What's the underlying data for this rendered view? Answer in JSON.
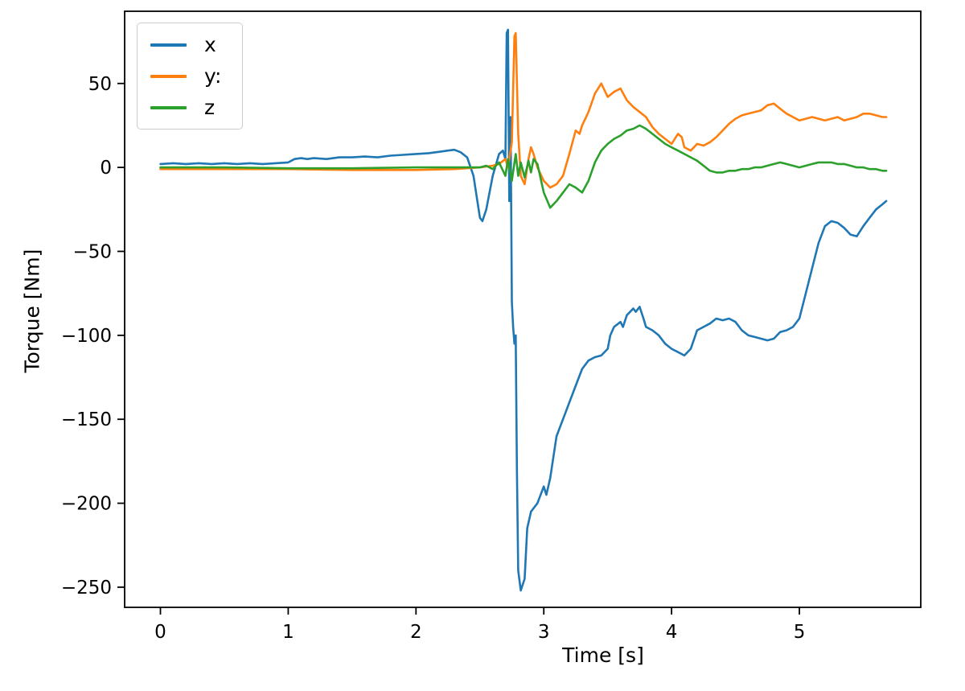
{
  "chart_data": {
    "type": "line",
    "title": "",
    "xlabel": "Time [s]",
    "ylabel": "Torque [Nm]",
    "xlim": [
      -0.28,
      5.95
    ],
    "ylim": [
      -262,
      93
    ],
    "x_ticks": [
      0,
      1,
      2,
      3,
      4,
      5
    ],
    "y_ticks": [
      50,
      0,
      -50,
      -100,
      -150,
      -200,
      -250
    ],
    "grid": false,
    "legend_position": "upper-left",
    "series": [
      {
        "name": "x",
        "color": "#1f77b4",
        "points": [
          [
            0,
            2
          ],
          [
            0.1,
            2.5
          ],
          [
            0.2,
            2
          ],
          [
            0.3,
            2.5
          ],
          [
            0.4,
            2
          ],
          [
            0.5,
            2.5
          ],
          [
            0.6,
            2
          ],
          [
            0.7,
            2.5
          ],
          [
            0.8,
            2
          ],
          [
            0.9,
            2.5
          ],
          [
            1.0,
            3
          ],
          [
            1.05,
            5
          ],
          [
            1.1,
            5.5
          ],
          [
            1.15,
            5
          ],
          [
            1.2,
            5.5
          ],
          [
            1.3,
            5
          ],
          [
            1.4,
            6
          ],
          [
            1.5,
            6
          ],
          [
            1.6,
            6.5
          ],
          [
            1.7,
            6
          ],
          [
            1.8,
            7
          ],
          [
            1.9,
            7.5
          ],
          [
            2.0,
            8
          ],
          [
            2.1,
            8.5
          ],
          [
            2.2,
            9.5
          ],
          [
            2.25,
            10
          ],
          [
            2.3,
            10.5
          ],
          [
            2.35,
            9
          ],
          [
            2.4,
            6
          ],
          [
            2.45,
            -5
          ],
          [
            2.5,
            -30
          ],
          [
            2.52,
            -32
          ],
          [
            2.55,
            -25
          ],
          [
            2.6,
            -5
          ],
          [
            2.65,
            8
          ],
          [
            2.68,
            10
          ],
          [
            2.7,
            5
          ],
          [
            2.71,
            80
          ],
          [
            2.72,
            82
          ],
          [
            2.73,
            -20
          ],
          [
            2.74,
            30
          ],
          [
            2.75,
            -80
          ],
          [
            2.76,
            -95
          ],
          [
            2.77,
            -105
          ],
          [
            2.78,
            -100
          ],
          [
            2.79,
            -180
          ],
          [
            2.8,
            -240
          ],
          [
            2.82,
            -252
          ],
          [
            2.85,
            -245
          ],
          [
            2.87,
            -215
          ],
          [
            2.9,
            -205
          ],
          [
            2.95,
            -200
          ],
          [
            3.0,
            -190
          ],
          [
            3.02,
            -195
          ],
          [
            3.05,
            -185
          ],
          [
            3.1,
            -160
          ],
          [
            3.15,
            -150
          ],
          [
            3.2,
            -140
          ],
          [
            3.25,
            -130
          ],
          [
            3.3,
            -120
          ],
          [
            3.35,
            -115
          ],
          [
            3.4,
            -113
          ],
          [
            3.45,
            -112
          ],
          [
            3.5,
            -108
          ],
          [
            3.52,
            -100
          ],
          [
            3.55,
            -95
          ],
          [
            3.6,
            -92
          ],
          [
            3.62,
            -95
          ],
          [
            3.65,
            -88
          ],
          [
            3.7,
            -84
          ],
          [
            3.72,
            -86
          ],
          [
            3.75,
            -83
          ],
          [
            3.78,
            -90
          ],
          [
            3.8,
            -95
          ],
          [
            3.85,
            -97
          ],
          [
            3.9,
            -100
          ],
          [
            3.95,
            -105
          ],
          [
            4.0,
            -108
          ],
          [
            4.05,
            -110
          ],
          [
            4.1,
            -112
          ],
          [
            4.15,
            -108
          ],
          [
            4.2,
            -97
          ],
          [
            4.25,
            -95
          ],
          [
            4.3,
            -93
          ],
          [
            4.35,
            -90
          ],
          [
            4.4,
            -91
          ],
          [
            4.45,
            -90
          ],
          [
            4.5,
            -92
          ],
          [
            4.55,
            -97
          ],
          [
            4.6,
            -100
          ],
          [
            4.65,
            -101
          ],
          [
            4.7,
            -102
          ],
          [
            4.75,
            -103
          ],
          [
            4.8,
            -102
          ],
          [
            4.85,
            -98
          ],
          [
            4.9,
            -97
          ],
          [
            4.95,
            -95
          ],
          [
            5.0,
            -90
          ],
          [
            5.05,
            -75
          ],
          [
            5.1,
            -60
          ],
          [
            5.15,
            -45
          ],
          [
            5.2,
            -35
          ],
          [
            5.25,
            -32
          ],
          [
            5.3,
            -33
          ],
          [
            5.35,
            -36
          ],
          [
            5.4,
            -40
          ],
          [
            5.45,
            -41
          ],
          [
            5.5,
            -35
          ],
          [
            5.55,
            -30
          ],
          [
            5.6,
            -25
          ],
          [
            5.65,
            -22
          ],
          [
            5.68,
            -20
          ]
        ]
      },
      {
        "name": "y:",
        "color": "#ff7f0e",
        "points": [
          [
            0,
            -1
          ],
          [
            0.5,
            -1
          ],
          [
            1.0,
            -1
          ],
          [
            1.5,
            -1.5
          ],
          [
            2.0,
            -1.5
          ],
          [
            2.3,
            -1
          ],
          [
            2.5,
            0
          ],
          [
            2.6,
            1
          ],
          [
            2.65,
            2
          ],
          [
            2.7,
            5
          ],
          [
            2.72,
            0
          ],
          [
            2.75,
            15
          ],
          [
            2.77,
            78
          ],
          [
            2.78,
            80
          ],
          [
            2.8,
            20
          ],
          [
            2.82,
            -5
          ],
          [
            2.85,
            -10
          ],
          [
            2.88,
            5
          ],
          [
            2.9,
            12
          ],
          [
            2.92,
            8
          ],
          [
            2.95,
            0
          ],
          [
            3.0,
            -8
          ],
          [
            3.05,
            -12
          ],
          [
            3.1,
            -10
          ],
          [
            3.15,
            -5
          ],
          [
            3.2,
            8
          ],
          [
            3.25,
            22
          ],
          [
            3.28,
            20
          ],
          [
            3.3,
            25
          ],
          [
            3.35,
            33
          ],
          [
            3.4,
            44
          ],
          [
            3.45,
            50
          ],
          [
            3.5,
            42
          ],
          [
            3.55,
            45
          ],
          [
            3.6,
            47
          ],
          [
            3.65,
            40
          ],
          [
            3.7,
            36
          ],
          [
            3.75,
            33
          ],
          [
            3.8,
            30
          ],
          [
            3.85,
            24
          ],
          [
            3.9,
            20
          ],
          [
            3.95,
            17
          ],
          [
            4.0,
            14
          ],
          [
            4.05,
            20
          ],
          [
            4.08,
            18
          ],
          [
            4.1,
            12
          ],
          [
            4.15,
            10
          ],
          [
            4.2,
            14
          ],
          [
            4.25,
            13
          ],
          [
            4.3,
            15
          ],
          [
            4.35,
            18
          ],
          [
            4.4,
            22
          ],
          [
            4.45,
            26
          ],
          [
            4.5,
            29
          ],
          [
            4.55,
            31
          ],
          [
            4.6,
            32
          ],
          [
            4.65,
            33
          ],
          [
            4.7,
            34
          ],
          [
            4.75,
            37
          ],
          [
            4.8,
            38
          ],
          [
            4.85,
            35
          ],
          [
            4.9,
            32
          ],
          [
            4.95,
            30
          ],
          [
            5.0,
            28
          ],
          [
            5.05,
            29
          ],
          [
            5.1,
            30
          ],
          [
            5.15,
            29
          ],
          [
            5.2,
            28
          ],
          [
            5.25,
            29
          ],
          [
            5.3,
            30
          ],
          [
            5.35,
            28
          ],
          [
            5.4,
            29
          ],
          [
            5.45,
            30
          ],
          [
            5.5,
            32
          ],
          [
            5.55,
            32
          ],
          [
            5.6,
            31
          ],
          [
            5.65,
            30
          ],
          [
            5.68,
            30
          ]
        ]
      },
      {
        "name": "z",
        "color": "#2ca02c",
        "points": [
          [
            0,
            0
          ],
          [
            0.5,
            0
          ],
          [
            1.0,
            -0.5
          ],
          [
            1.5,
            -0.5
          ],
          [
            2.0,
            0
          ],
          [
            2.3,
            0
          ],
          [
            2.5,
            0
          ],
          [
            2.55,
            1
          ],
          [
            2.6,
            -1
          ],
          [
            2.65,
            3
          ],
          [
            2.7,
            -5
          ],
          [
            2.72,
            5
          ],
          [
            2.75,
            -8
          ],
          [
            2.78,
            8
          ],
          [
            2.8,
            -5
          ],
          [
            2.82,
            3
          ],
          [
            2.85,
            -6
          ],
          [
            2.88,
            4
          ],
          [
            2.9,
            -3
          ],
          [
            2.92,
            5
          ],
          [
            2.95,
            2
          ],
          [
            3.0,
            -15
          ],
          [
            3.05,
            -24
          ],
          [
            3.1,
            -20
          ],
          [
            3.15,
            -15
          ],
          [
            3.2,
            -10
          ],
          [
            3.25,
            -12
          ],
          [
            3.3,
            -15
          ],
          [
            3.35,
            -8
          ],
          [
            3.4,
            3
          ],
          [
            3.45,
            10
          ],
          [
            3.5,
            14
          ],
          [
            3.55,
            17
          ],
          [
            3.6,
            19
          ],
          [
            3.65,
            22
          ],
          [
            3.7,
            23
          ],
          [
            3.75,
            25
          ],
          [
            3.8,
            23
          ],
          [
            3.85,
            20
          ],
          [
            3.9,
            17
          ],
          [
            3.95,
            14
          ],
          [
            4.0,
            12
          ],
          [
            4.05,
            10
          ],
          [
            4.1,
            8
          ],
          [
            4.15,
            6
          ],
          [
            4.2,
            4
          ],
          [
            4.25,
            1
          ],
          [
            4.3,
            -2
          ],
          [
            4.35,
            -3
          ],
          [
            4.4,
            -3
          ],
          [
            4.45,
            -2
          ],
          [
            4.5,
            -2
          ],
          [
            4.55,
            -1
          ],
          [
            4.6,
            -1
          ],
          [
            4.65,
            0
          ],
          [
            4.7,
            0
          ],
          [
            4.75,
            1
          ],
          [
            4.8,
            2
          ],
          [
            4.85,
            3
          ],
          [
            4.9,
            2
          ],
          [
            4.95,
            1
          ],
          [
            5.0,
            0
          ],
          [
            5.05,
            1
          ],
          [
            5.1,
            2
          ],
          [
            5.15,
            3
          ],
          [
            5.2,
            3
          ],
          [
            5.25,
            3
          ],
          [
            5.3,
            2
          ],
          [
            5.35,
            2
          ],
          [
            5.4,
            1
          ],
          [
            5.45,
            0
          ],
          [
            5.5,
            0
          ],
          [
            5.55,
            -1
          ],
          [
            5.6,
            -1
          ],
          [
            5.65,
            -2
          ],
          [
            5.68,
            -2
          ]
        ]
      }
    ]
  }
}
